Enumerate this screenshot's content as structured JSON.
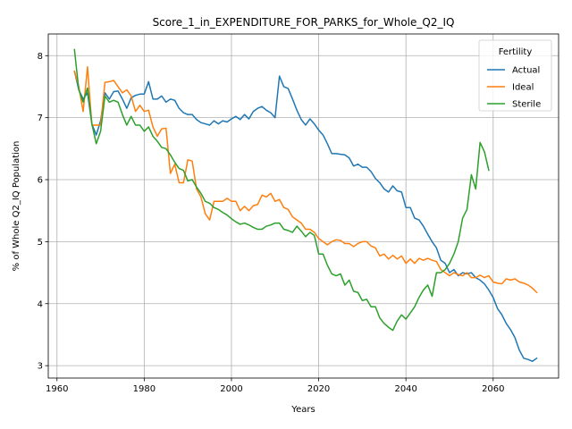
{
  "chart_data": {
    "type": "line",
    "title": "Score_1_in_EXPENDITURE_FOR_PARKS_for_Whole_Q2_IQ",
    "xlabel": "Years",
    "ylabel": "% of Whole Q2_IQ Population",
    "xlim": [
      1958,
      2075
    ],
    "ylim": [
      2.8,
      8.35
    ],
    "xticks": [
      1960,
      1980,
      2000,
      2020,
      2040,
      2060
    ],
    "yticks": [
      3,
      4,
      5,
      6,
      7,
      8
    ],
    "grid": true,
    "legend": {
      "title": "Fertility",
      "position": "top-right"
    },
    "series": [
      {
        "name": "Actual",
        "color": "#1f77b4",
        "x": [
          1964,
          1965,
          1966,
          1967,
          1968,
          1969,
          1970,
          1971,
          1972,
          1973,
          1974,
          1975,
          1976,
          1977,
          1978,
          1979,
          1980,
          1981,
          1982,
          1983,
          1984,
          1985,
          1986,
          1987,
          1988,
          1989,
          1990,
          1991,
          1992,
          1993,
          1994,
          1995,
          1996,
          1997,
          1998,
          1999,
          2000,
          2001,
          2002,
          2003,
          2004,
          2005,
          2006,
          2007,
          2008,
          2009,
          2010,
          2011,
          2012,
          2013,
          2014,
          2015,
          2016,
          2017,
          2018,
          2019,
          2020,
          2021,
          2022,
          2023,
          2024,
          2025,
          2026,
          2027,
          2028,
          2029,
          2030,
          2031,
          2032,
          2033,
          2034,
          2035,
          2036,
          2037,
          2038,
          2039,
          2040,
          2041,
          2042,
          2043,
          2044,
          2045,
          2046,
          2047,
          2048,
          2049,
          2050,
          2051,
          2052,
          2053,
          2054,
          2055,
          2056,
          2057,
          2058,
          2059,
          2060,
          2061,
          2062,
          2063,
          2064,
          2065,
          2066,
          2067,
          2068,
          2069,
          2070
        ],
        "values": [
          7.75,
          7.45,
          7.3,
          7.4,
          6.9,
          6.72,
          6.95,
          7.4,
          7.3,
          7.42,
          7.43,
          7.3,
          7.15,
          7.32,
          7.36,
          7.38,
          7.38,
          7.58,
          7.3,
          7.3,
          7.35,
          7.25,
          7.3,
          7.28,
          7.15,
          7.08,
          7.05,
          7.05,
          6.97,
          6.92,
          6.9,
          6.88,
          6.95,
          6.9,
          6.95,
          6.93,
          6.98,
          7.02,
          6.97,
          7.05,
          6.98,
          7.1,
          7.15,
          7.18,
          7.12,
          7.08,
          7.0,
          7.67,
          7.5,
          7.47,
          7.3,
          7.12,
          6.97,
          6.88,
          6.98,
          6.9,
          6.8,
          6.72,
          6.58,
          6.42,
          6.42,
          6.41,
          6.4,
          6.35,
          6.22,
          6.25,
          6.2,
          6.2,
          6.13,
          6.02,
          5.95,
          5.85,
          5.8,
          5.9,
          5.82,
          5.8,
          5.55,
          5.55,
          5.38,
          5.35,
          5.25,
          5.12,
          5.0,
          4.9,
          4.7,
          4.65,
          4.5,
          4.55,
          4.45,
          4.5,
          4.48,
          4.5,
          4.42,
          4.38,
          4.32,
          4.22,
          4.1,
          3.92,
          3.82,
          3.68,
          3.58,
          3.45,
          3.25,
          3.12,
          3.1,
          3.07,
          3.12
        ]
      },
      {
        "name": "Ideal",
        "color": "#ff7f0e",
        "x": [
          1964,
          1965,
          1966,
          1967,
          1968,
          1969,
          1970,
          1971,
          1972,
          1973,
          1974,
          1975,
          1976,
          1977,
          1978,
          1979,
          1980,
          1981,
          1982,
          1983,
          1984,
          1985,
          1986,
          1987,
          1988,
          1989,
          1990,
          1991,
          1992,
          1993,
          1994,
          1995,
          1996,
          1997,
          1998,
          1999,
          2000,
          2001,
          2002,
          2003,
          2004,
          2005,
          2006,
          2007,
          2008,
          2009,
          2010,
          2011,
          2012,
          2013,
          2014,
          2015,
          2016,
          2017,
          2018,
          2019,
          2020,
          2021,
          2022,
          2023,
          2024,
          2025,
          2026,
          2027,
          2028,
          2029,
          2030,
          2031,
          2032,
          2033,
          2034,
          2035,
          2036,
          2037,
          2038,
          2039,
          2040,
          2041,
          2042,
          2043,
          2044,
          2045,
          2046,
          2047,
          2048,
          2049,
          2050,
          2051,
          2052,
          2053,
          2054,
          2055,
          2056,
          2057,
          2058,
          2059,
          2060,
          2061,
          2062,
          2063,
          2064,
          2065,
          2066,
          2067,
          2068,
          2069,
          2070
        ],
        "values": [
          7.75,
          7.5,
          7.1,
          7.82,
          6.88,
          6.88,
          6.88,
          7.57,
          7.58,
          7.6,
          7.5,
          7.4,
          7.45,
          7.35,
          7.1,
          7.2,
          7.1,
          7.12,
          6.85,
          6.7,
          6.82,
          6.83,
          6.1,
          6.25,
          5.95,
          5.95,
          6.32,
          6.3,
          5.85,
          5.72,
          5.45,
          5.35,
          5.65,
          5.65,
          5.65,
          5.7,
          5.65,
          5.65,
          5.5,
          5.57,
          5.5,
          5.58,
          5.6,
          5.75,
          5.72,
          5.78,
          5.65,
          5.68,
          5.55,
          5.52,
          5.4,
          5.35,
          5.3,
          5.2,
          5.2,
          5.15,
          5.05,
          5.0,
          4.95,
          5.0,
          5.03,
          5.02,
          4.97,
          4.97,
          4.92,
          4.97,
          5.0,
          5.0,
          4.93,
          4.9,
          4.77,
          4.8,
          4.72,
          4.78,
          4.72,
          4.77,
          4.65,
          4.72,
          4.65,
          4.73,
          4.7,
          4.73,
          4.7,
          4.68,
          4.55,
          4.5,
          4.45,
          4.5,
          4.47,
          4.45,
          4.5,
          4.42,
          4.42,
          4.46,
          4.42,
          4.45,
          4.35,
          4.33,
          4.32,
          4.4,
          4.38,
          4.4,
          4.35,
          4.33,
          4.3,
          4.25,
          4.18
        ]
      },
      {
        "name": "Sterile",
        "color": "#2ca02c",
        "x": [
          1964,
          1965,
          1966,
          1967,
          1968,
          1969,
          1970,
          1971,
          1972,
          1973,
          1974,
          1975,
          1976,
          1977,
          1978,
          1979,
          1980,
          1981,
          1982,
          1983,
          1984,
          1985,
          1986,
          1987,
          1988,
          1989,
          1990,
          1991,
          1992,
          1993,
          1994,
          1995,
          1996,
          1997,
          1998,
          1999,
          2000,
          2001,
          2002,
          2003,
          2004,
          2005,
          2006,
          2007,
          2008,
          2009,
          2010,
          2011,
          2012,
          2013,
          2014,
          2015,
          2016,
          2017,
          2018,
          2019,
          2020,
          2021,
          2022,
          2023,
          2024,
          2025,
          2026,
          2027,
          2028,
          2029,
          2030,
          2031,
          2032,
          2033,
          2034,
          2035,
          2036,
          2037,
          2038,
          2039,
          2040,
          2041,
          2042,
          2043,
          2044,
          2045,
          2046,
          2047,
          2048,
          2049,
          2050,
          2051,
          2052,
          2053,
          2054,
          2055,
          2056,
          2057,
          2058,
          2059
        ],
        "values": [
          8.1,
          7.45,
          7.25,
          7.48,
          6.9,
          6.58,
          6.78,
          7.35,
          7.25,
          7.28,
          7.25,
          7.05,
          6.88,
          7.02,
          6.88,
          6.88,
          6.78,
          6.85,
          6.7,
          6.62,
          6.52,
          6.5,
          6.4,
          6.28,
          6.18,
          6.15,
          5.98,
          6.0,
          5.88,
          5.78,
          5.65,
          5.62,
          5.55,
          5.52,
          5.47,
          5.43,
          5.37,
          5.32,
          5.28,
          5.3,
          5.27,
          5.23,
          5.2,
          5.2,
          5.25,
          5.27,
          5.3,
          5.3,
          5.2,
          5.18,
          5.15,
          5.25,
          5.17,
          5.08,
          5.15,
          5.1,
          4.8,
          4.8,
          4.62,
          4.48,
          4.45,
          4.48,
          4.3,
          4.38,
          4.2,
          4.18,
          4.05,
          4.07,
          3.95,
          3.95,
          3.77,
          3.68,
          3.62,
          3.57,
          3.72,
          3.82,
          3.75,
          3.85,
          3.95,
          4.1,
          4.22,
          4.3,
          4.12,
          4.5,
          4.5,
          4.55,
          4.65,
          4.8,
          5.0,
          5.38,
          5.52,
          6.08,
          5.85,
          6.6,
          6.45,
          6.15
        ]
      }
    ]
  }
}
